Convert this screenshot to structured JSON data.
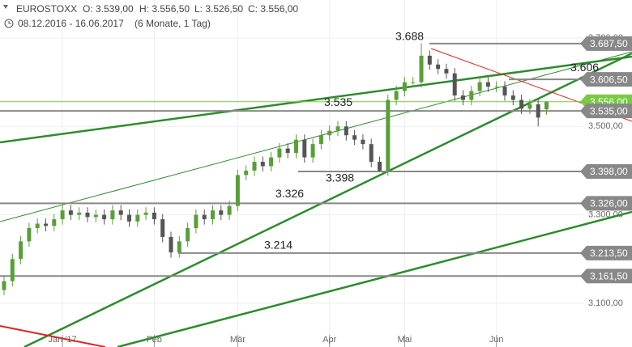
{
  "chart_data": {
    "type": "candlestick",
    "symbol": "EUROSTOXX",
    "header_open": "O: 3.539,00",
    "header_high": "H: 3.556,50",
    "header_low": "L: 3.526,50",
    "header_close": "C: 3.556,00",
    "period": "08.12.2016 - 16.06.2017",
    "interval": "(6 Monate, 1 Tag)",
    "up_color": "#5a9e3a",
    "down_color": "#555555",
    "ylim": [
      3001,
      3786
    ],
    "yticks": [
      {
        "value": 3100,
        "label": "3.100,00"
      },
      {
        "value": 3300,
        "label": "3.300,00"
      },
      {
        "value": 3500,
        "label": "3.500,00"
      },
      {
        "value": 3700,
        "label": "3.700,00"
      }
    ],
    "xticks": [
      {
        "value": 7,
        "label": "Jan '17"
      },
      {
        "value": 18,
        "label": "Feb"
      },
      {
        "value": 28,
        "label": "Mär"
      },
      {
        "value": 39,
        "label": "Apr"
      },
      {
        "value": 48,
        "label": "Mai"
      },
      {
        "value": 59,
        "label": "Jun"
      }
    ],
    "open": [
      3130,
      3150,
      3200,
      3240,
      3270,
      3280,
      3275,
      3290,
      3310,
      3300,
      3305,
      3295,
      3300,
      3290,
      3310,
      3300,
      3285,
      3300,
      3305,
      3290,
      3250,
      3215,
      3240,
      3270,
      3300,
      3290,
      3310,
      3300,
      3320,
      3390,
      3400,
      3420,
      3410,
      3430,
      3450,
      3440,
      3470,
      3430,
      3460,
      3480,
      3490,
      3500,
      3480,
      3470,
      3460,
      3420,
      3400,
      3560,
      3580,
      3600,
      3600,
      3660,
      3640,
      3630,
      3620,
      3570,
      3560,
      3580,
      3600,
      3590,
      3590,
      3570,
      3560,
      3540,
      3550,
      3539
    ],
    "high": [
      3162,
      3212,
      3252,
      3282,
      3292,
      3292,
      3302,
      3322,
      3322,
      3317,
      3317,
      3312,
      3312,
      3322,
      3322,
      3312,
      3312,
      3317,
      3317,
      3302,
      3262,
      3252,
      3282,
      3312,
      3312,
      3322,
      3322,
      3332,
      3402,
      3412,
      3432,
      3432,
      3442,
      3462,
      3462,
      3482,
      3482,
      3472,
      3492,
      3502,
      3512,
      3512,
      3492,
      3482,
      3472,
      3432,
      3572,
      3592,
      3612,
      3612,
      3688,
      3672,
      3652,
      3642,
      3632,
      3582,
      3592,
      3612,
      3612,
      3602,
      3602,
      3582,
      3572,
      3562,
      3562,
      3556.5
    ],
    "low": [
      3118,
      3138,
      3188,
      3228,
      3258,
      3263,
      3263,
      3278,
      3288,
      3288,
      3283,
      3283,
      3278,
      3278,
      3288,
      3273,
      3273,
      3288,
      3278,
      3238,
      3203,
      3203,
      3228,
      3258,
      3278,
      3278,
      3288,
      3288,
      3308,
      3378,
      3388,
      3398,
      3398,
      3418,
      3428,
      3428,
      3418,
      3418,
      3448,
      3468,
      3478,
      3468,
      3458,
      3448,
      3408,
      3398,
      3388,
      3548,
      3568,
      3588,
      3588,
      3628,
      3618,
      3608,
      3558,
      3548,
      3548,
      3568,
      3578,
      3578,
      3558,
      3548,
      3528,
      3528,
      3500,
      3526.5
    ],
    "close": [
      3150,
      3200,
      3240,
      3270,
      3280,
      3275,
      3290,
      3310,
      3300,
      3305,
      3295,
      3300,
      3290,
      3310,
      3300,
      3285,
      3300,
      3305,
      3290,
      3250,
      3215,
      3240,
      3270,
      3300,
      3290,
      3310,
      3300,
      3320,
      3390,
      3400,
      3420,
      3410,
      3430,
      3450,
      3440,
      3470,
      3430,
      3460,
      3480,
      3490,
      3500,
      3480,
      3470,
      3460,
      3420,
      3400,
      3560,
      3580,
      3600,
      3600,
      3660,
      3640,
      3630,
      3620,
      3570,
      3560,
      3580,
      3600,
      3590,
      3590,
      3570,
      3560,
      3540,
      3550,
      3520,
      3556
    ],
    "levels": [
      {
        "value": 3687.5,
        "label": "3.687,50"
      },
      {
        "value": 3606.5,
        "label": "3.606,50"
      },
      {
        "value": 3556,
        "label": "3.556,00"
      },
      {
        "value": 3535,
        "label": "3.535,00"
      },
      {
        "value": 3398,
        "label": "3.398,00"
      },
      {
        "value": 3326,
        "label": "3.326,00"
      },
      {
        "value": 3213.5,
        "label": "3.213,50"
      },
      {
        "value": 3161.5,
        "label": "3.161,50"
      }
    ],
    "annotations": [
      {
        "value": 3688,
        "label": "3.688"
      },
      {
        "value": 3535,
        "label": "3.535"
      },
      {
        "value": 3398,
        "label": "3.398"
      },
      {
        "value": 3326,
        "label": "3.326"
      },
      {
        "value": 3214,
        "label": "3.214"
      },
      {
        "value": 3606,
        "label": "3.606"
      }
    ]
  }
}
